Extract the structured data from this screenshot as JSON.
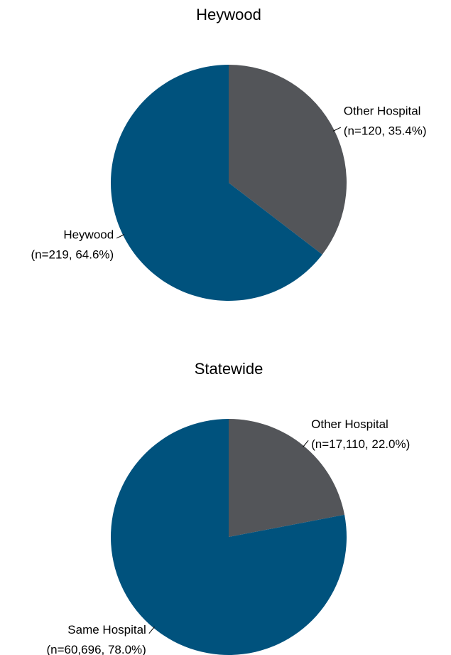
{
  "chart_data": [
    {
      "type": "pie",
      "title": "Heywood",
      "categories": [
        "Other Hospital",
        "Heywood"
      ],
      "values": [
        120,
        219
      ],
      "value_labels": [
        "(n=120, 35.4%)",
        "(n=219, 64.6%)"
      ],
      "colors": [
        "#535559",
        "#00527d"
      ]
    },
    {
      "type": "pie",
      "title": "Statewide",
      "categories": [
        "Other Hospital",
        "Same Hospital"
      ],
      "values": [
        17110,
        60696
      ],
      "value_labels": [
        "(n=17,110, 22.0%)",
        "(n=60,696, 78.0%)"
      ],
      "colors": [
        "#535559",
        "#00527d"
      ]
    }
  ]
}
